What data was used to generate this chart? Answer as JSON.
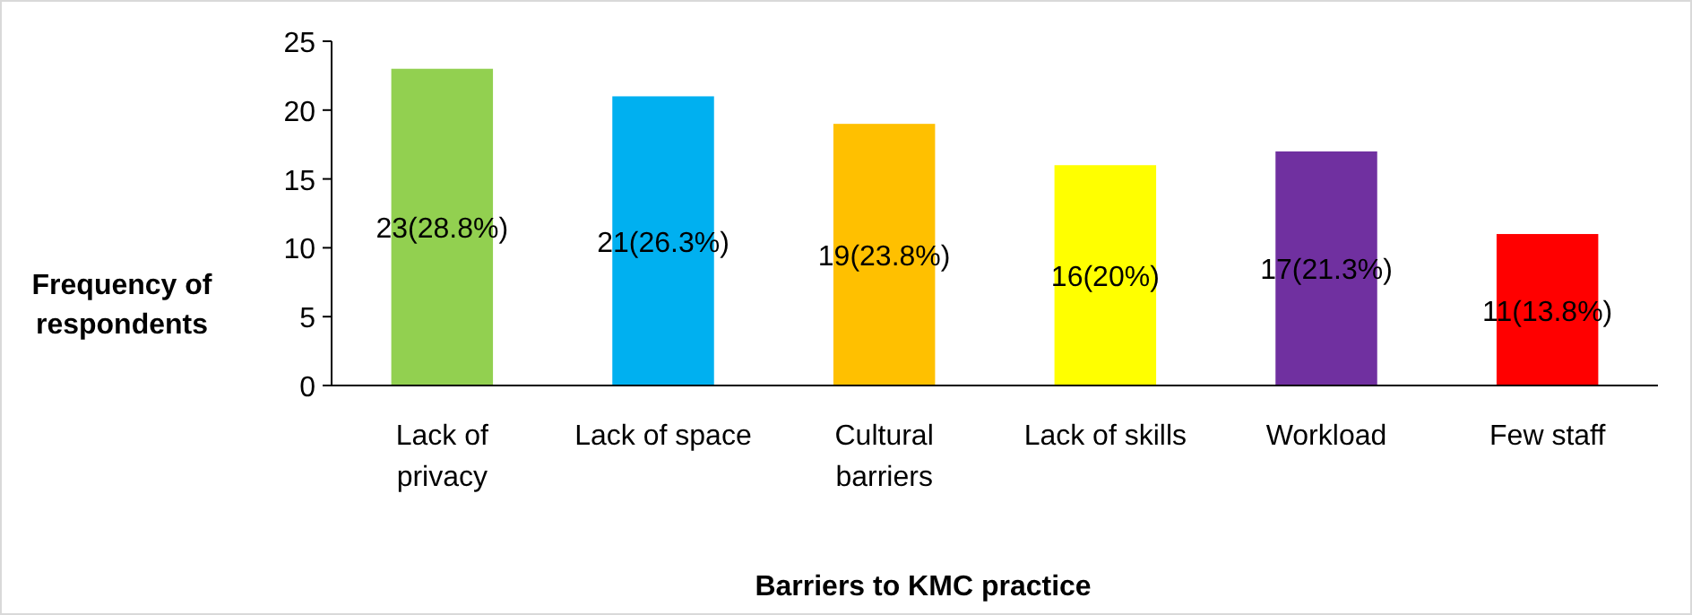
{
  "chart_data": {
    "type": "bar",
    "xlabel": "Barriers to KMC practice",
    "ylabel": "Frequency of respondents",
    "categories": [
      "Lack of privacy",
      "Lack of space",
      "Cultural barriers",
      "Lack of skills",
      "Workload",
      "Few staff"
    ],
    "values": [
      23,
      21,
      19,
      16,
      17,
      11
    ],
    "colors": [
      "#92d050",
      "#00b0f0",
      "#ffc000",
      "#ffff00",
      "#7030a0",
      "#ff0000"
    ],
    "value_labels": [
      "23(28.8%)",
      "21(26.3%)",
      "19(23.8%)",
      "16(20%)",
      "17(21.3%)",
      "11(13.8%)"
    ],
    "ylim": [
      0,
      25
    ],
    "yticks": [
      0,
      5,
      10,
      15,
      20,
      25
    ],
    "grid": false
  }
}
